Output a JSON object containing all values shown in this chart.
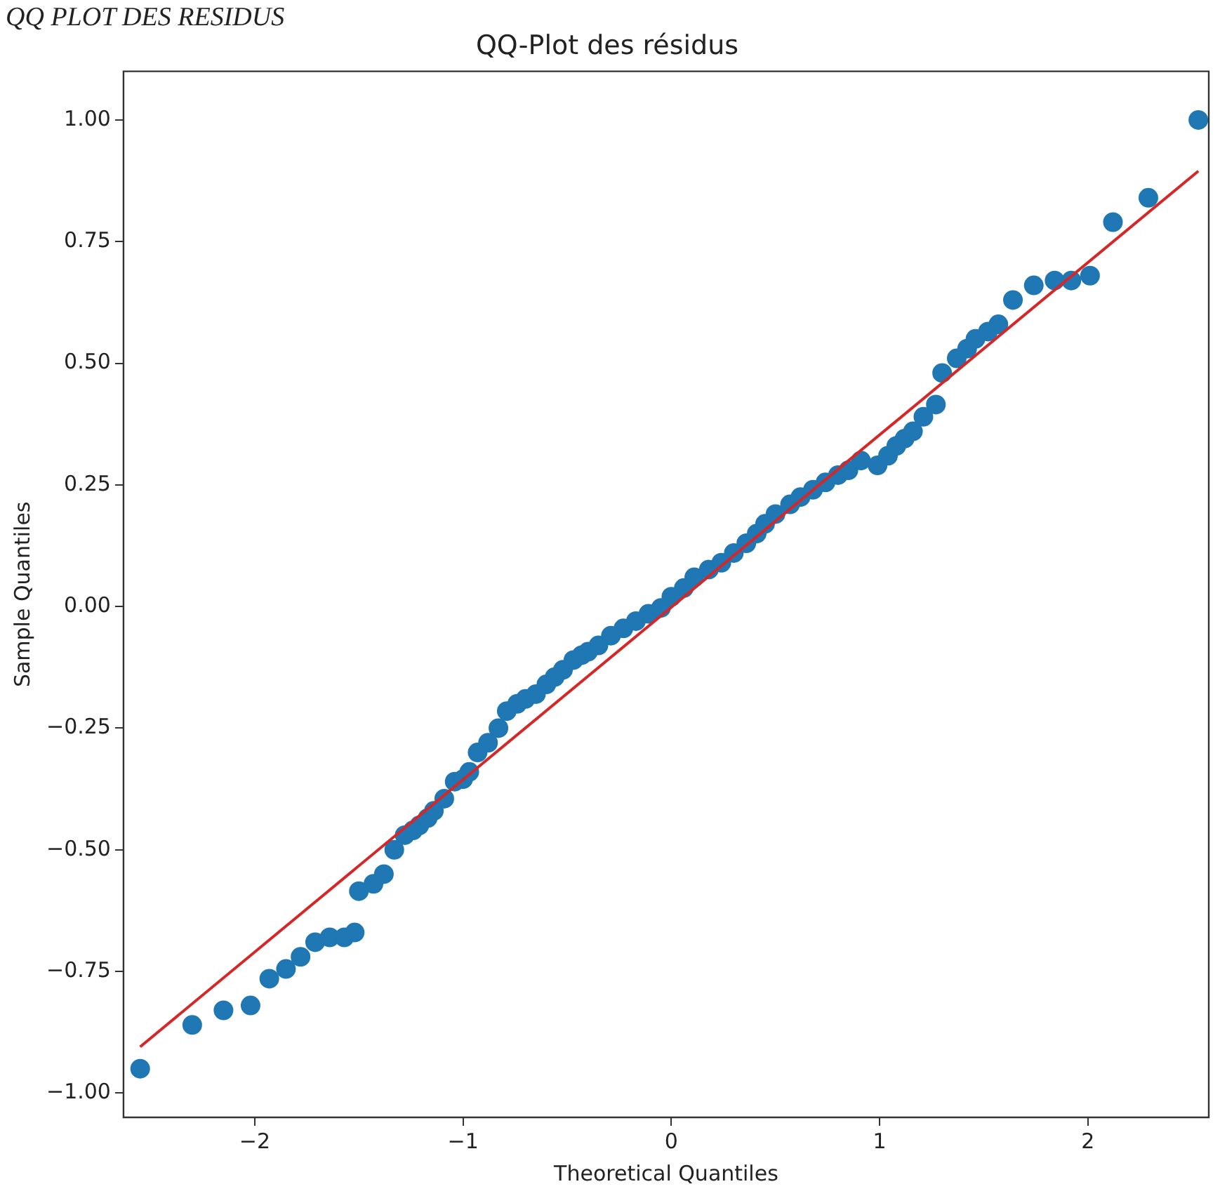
{
  "chart_data": {
    "type": "scatter",
    "title": "QQ-Plot des résidus",
    "xlabel": "Theoretical Quantiles",
    "ylabel": "Sample Quantiles",
    "annotations": [
      "QQ PLOT DES RESIDUS"
    ],
    "xlim": [
      -2.63,
      2.58
    ],
    "ylim": [
      -1.05,
      1.1
    ],
    "xticks": [
      {
        "value": -2,
        "label": "−2"
      },
      {
        "value": -1,
        "label": "−1"
      },
      0,
      1,
      2
    ],
    "yticks": [
      {
        "value": -1,
        "label": "−1.00"
      },
      {
        "value": -0.75,
        "label": "−0.75"
      },
      {
        "value": -0.5,
        "label": "−0.50"
      },
      {
        "value": -0.25,
        "label": "−0.25"
      },
      {
        "value": 0,
        "label": "0.00"
      },
      {
        "value": 0.25,
        "label": "0.25"
      },
      {
        "value": 0.5,
        "label": "0.50"
      },
      {
        "value": 0.75,
        "label": "0.75"
      },
      {
        "value": 1,
        "label": "1.00"
      }
    ],
    "grid": false,
    "legend": false,
    "series": [
      {
        "marker": "circle",
        "color": "#1f77b4",
        "x": [
          -2.55,
          -2.3,
          -2.15,
          -2.02,
          -1.93,
          -1.85,
          -1.78,
          -1.71,
          -1.64,
          -1.57,
          -1.52,
          -1.5,
          -1.43,
          -1.38,
          -1.33,
          -1.28,
          -1.24,
          -1.21,
          -1.17,
          -1.14,
          -1.09,
          -1.04,
          -1.0,
          -0.97,
          -0.93,
          -0.88,
          -0.83,
          -0.79,
          -0.74,
          -0.7,
          -0.65,
          -0.6,
          -0.56,
          -0.52,
          -0.47,
          -0.43,
          -0.4,
          -0.35,
          -0.29,
          -0.23,
          -0.17,
          -0.11,
          -0.05,
          0.0,
          0.06,
          0.11,
          0.18,
          0.24,
          0.3,
          0.36,
          0.41,
          0.45,
          0.5,
          0.57,
          0.62,
          0.68,
          0.74,
          0.8,
          0.85,
          0.91,
          0.99,
          1.04,
          1.08,
          1.12,
          1.16,
          1.21,
          1.27,
          1.3,
          1.37,
          1.42,
          1.46,
          1.52,
          1.57,
          1.64,
          1.74,
          1.84,
          1.92,
          2.01,
          2.12,
          2.29,
          2.53
        ],
        "values": [
          -0.95,
          -0.86,
          -0.83,
          -0.82,
          -0.765,
          -0.745,
          -0.72,
          -0.69,
          -0.68,
          -0.68,
          -0.67,
          -0.585,
          -0.57,
          -0.55,
          -0.5,
          -0.47,
          -0.46,
          -0.45,
          -0.435,
          -0.42,
          -0.395,
          -0.36,
          -0.355,
          -0.34,
          -0.3,
          -0.28,
          -0.25,
          -0.215,
          -0.2,
          -0.19,
          -0.18,
          -0.16,
          -0.145,
          -0.13,
          -0.11,
          -0.1,
          -0.093,
          -0.08,
          -0.06,
          -0.045,
          -0.03,
          -0.015,
          -0.003,
          0.02,
          0.038,
          0.06,
          0.076,
          0.09,
          0.11,
          0.13,
          0.15,
          0.17,
          0.19,
          0.21,
          0.225,
          0.24,
          0.255,
          0.27,
          0.28,
          0.3,
          0.29,
          0.31,
          0.33,
          0.345,
          0.36,
          0.39,
          0.415,
          0.48,
          0.51,
          0.53,
          0.55,
          0.565,
          0.58,
          0.63,
          0.66,
          0.67,
          0.67,
          0.68,
          0.79,
          0.84,
          1.0
        ]
      },
      {
        "type": "line",
        "marker": "none",
        "color": "#d62728",
        "x": [
          -2.55,
          2.53
        ],
        "values": [
          -0.905,
          0.895
        ]
      }
    ]
  }
}
